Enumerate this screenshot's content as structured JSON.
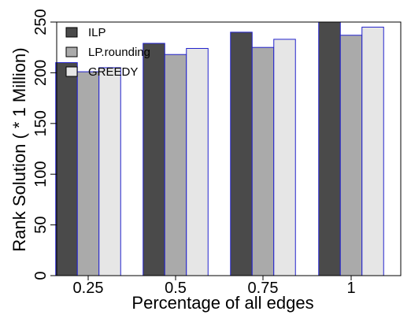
{
  "chart_data": {
    "type": "bar",
    "title": "",
    "xlabel": "Percentage of all edges",
    "ylabel": "Rank Solution ( * 1 Million)",
    "categories": [
      "0.25",
      "0.5",
      "0.75",
      "1"
    ],
    "series": [
      {
        "name": "ILP",
        "values": [
          210,
          229,
          240,
          250
        ],
        "color": "#4a4a4a"
      },
      {
        "name": "LP.rounding",
        "values": [
          201,
          218,
          225,
          237
        ],
        "color": "#aaaaaa"
      },
      {
        "name": "GREEDY",
        "values": [
          205,
          224,
          233,
          245
        ],
        "color": "#e6e6e6"
      }
    ],
    "ylim": [
      0,
      250
    ],
    "yticks": [
      "0",
      "50",
      "100",
      "150",
      "200",
      "250"
    ],
    "bar_edge_color": "#2222cc",
    "legend_position": "top-left",
    "grid": false
  }
}
